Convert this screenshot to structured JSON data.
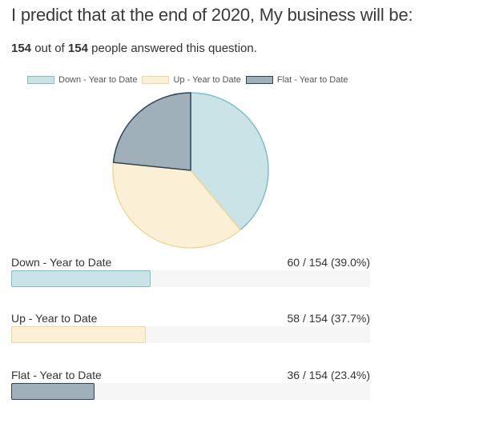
{
  "question": {
    "title": "I predict that at the end of 2020, My business will be:"
  },
  "summary": {
    "answered": "154",
    "text1": " out of ",
    "total": "154",
    "text2": " people answered this question."
  },
  "colors": {
    "down_fill": "#c9e3e6",
    "down_stroke": "#7fc0c6",
    "up_fill": "#fbf0d6",
    "up_stroke": "#efd998",
    "flat_fill": "#a0b0bb",
    "flat_stroke": "#2f4558"
  },
  "chart_data": {
    "type": "pie",
    "title": "",
    "categories": [
      "Down - Year to Date",
      "Up - Year to Date",
      "Flat - Year to Date"
    ],
    "values": [
      60,
      58,
      36
    ],
    "total": 154,
    "legend_position": "top",
    "legend": [
      "Down - Year to Date",
      "Up - Year to Date",
      "Flat - Year to Date"
    ]
  },
  "results": [
    {
      "label": "Down - Year to Date",
      "value_text": "60 / 154 (39.0%)",
      "fraction": 0.39
    },
    {
      "label": "Up - Year to Date",
      "value_text": "58 / 154 (37.7%)",
      "fraction": 0.377
    },
    {
      "label": "Flat - Year to Date",
      "value_text": "36 / 154 (23.4%)",
      "fraction": 0.234
    }
  ]
}
